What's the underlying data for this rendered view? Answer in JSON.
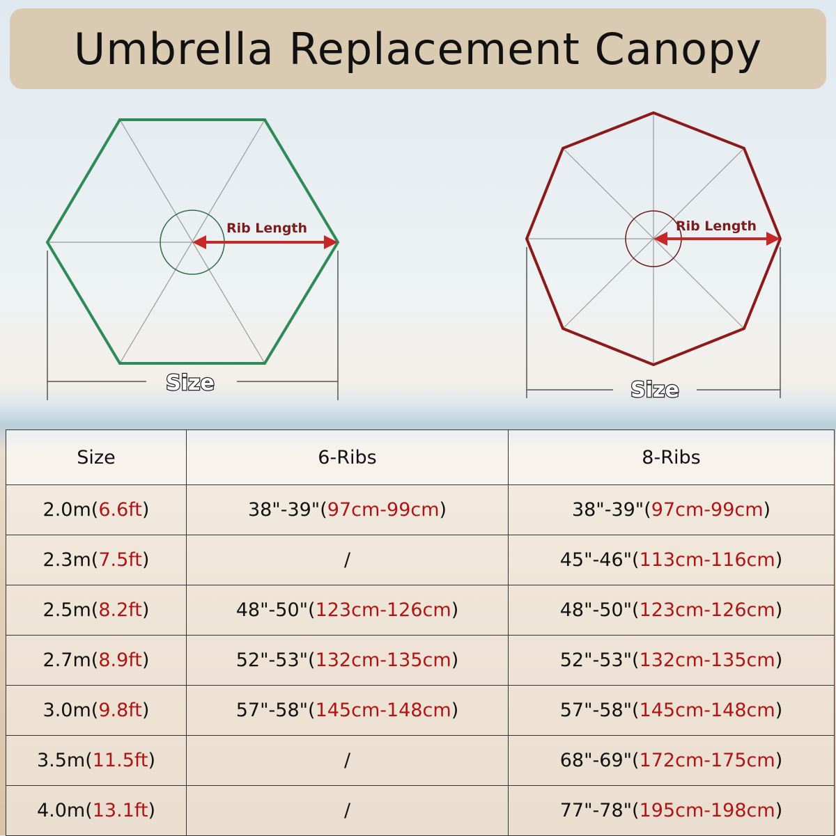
{
  "title": "Umbrella Replacement Canopy",
  "diagrams": [
    {
      "rib_label": "Rib Length",
      "size_label": "Size"
    },
    {
      "rib_label": "Rib Length",
      "size_label": "Size"
    }
  ],
  "table": {
    "header": [
      "Size",
      "6-Ribs",
      "8-Ribs"
    ],
    "rows": [
      [
        [
          "2.0m(",
          "6.6ft",
          ")"
        ],
        [
          "38\"-39\"(",
          "97cm-99cm",
          ")"
        ],
        [
          "38\"-39\"(",
          "97cm-99cm",
          ")"
        ]
      ],
      [
        [
          "2.3m(",
          "7.5ft",
          ")"
        ],
        [
          "/"
        ],
        [
          "45\"-46\"(",
          "113cm-116cm",
          ")"
        ]
      ],
      [
        [
          "2.5m(",
          "8.2ft",
          ")"
        ],
        [
          "48\"-50\"(",
          "123cm-126cm",
          ")"
        ],
        [
          "48\"-50\"(",
          "123cm-126cm",
          ")"
        ]
      ],
      [
        [
          "2.7m(",
          "8.9ft",
          ")"
        ],
        [
          "52\"-53\"(",
          "132cm-135cm",
          ")"
        ],
        [
          "52\"-53\"(",
          "132cm-135cm",
          ")"
        ]
      ],
      [
        [
          "3.0m(",
          "9.8ft",
          ")"
        ],
        [
          "57\"-58\"(",
          "145cm-148cm",
          ")"
        ],
        [
          "57\"-58\"(",
          "145cm-148cm",
          ")"
        ]
      ],
      [
        [
          "3.5m(",
          "11.5ft",
          ")"
        ],
        [
          "/"
        ],
        [
          "68\"-69\"(",
          "172cm-175cm",
          ")"
        ]
      ],
      [
        [
          "4.0m(",
          "13.1ft",
          ")"
        ],
        [
          "/"
        ],
        [
          "77\"-78\"(",
          "195cm-198cm",
          ")"
        ]
      ]
    ]
  }
}
